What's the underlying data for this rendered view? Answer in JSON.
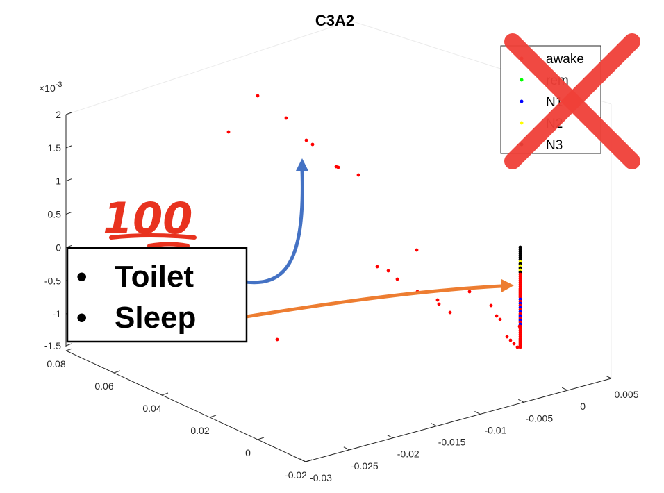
{
  "chart_data": {
    "type": "scatter",
    "title": "C3A2",
    "z_axis": {
      "exponent_label": "×10",
      "exponent_power": "-3",
      "tick_labels": [
        "2",
        "1.5",
        "1",
        "0.5",
        "0",
        "-0.5",
        "-1",
        "-1.5"
      ]
    },
    "y_axis": {
      "tick_labels": [
        "0.08",
        "0.06",
        "0.04",
        "0.02",
        "0",
        "-0.02"
      ]
    },
    "x_axis": {
      "tick_labels": [
        "-0.03",
        "-0.025",
        "-0.02",
        "-0.015",
        "-0.01",
        "-0.005",
        "0",
        "0.005"
      ]
    },
    "legend": {
      "position": "top-right",
      "crossed_out": true,
      "entries": [
        {
          "name": "awake",
          "color": "#ff0000"
        },
        {
          "name": "rem",
          "color": "#00ff00"
        },
        {
          "name": "N1",
          "color": "#0000ff"
        },
        {
          "name": "N2",
          "color": "#ffff00"
        },
        {
          "name": "N3",
          "color": "#000000"
        }
      ]
    },
    "series": [
      {
        "name": "awake",
        "color": "#ff0000",
        "points": [
          [
            371,
            138
          ],
          [
            412,
            170
          ],
          [
            329,
            190
          ],
          [
            441,
            202
          ],
          [
            450,
            208
          ],
          [
            484,
            240
          ],
          [
            487,
            241
          ],
          [
            516,
            252
          ],
          [
            600,
            360
          ],
          [
            543,
            384
          ],
          [
            559,
            390
          ],
          [
            572,
            402
          ],
          [
            601,
            420
          ],
          [
            630,
            432
          ],
          [
            632,
            438
          ],
          [
            648,
            450
          ],
          [
            676,
            420
          ],
          [
            707,
            440
          ],
          [
            715,
            455
          ],
          [
            720,
            460
          ],
          [
            399,
            489
          ],
          [
            735,
            490
          ],
          [
            740,
            495
          ],
          [
            745,
            500
          ],
          [
            748,
            470
          ],
          [
            730,
            485
          ]
        ]
      }
    ],
    "cluster_color": "#000000"
  },
  "annotations": {
    "callout_items": [
      "Toilet",
      "Sleep"
    ],
    "bullet": "•",
    "emoji_text": "100",
    "arrow_colors": {
      "toilet": "#4472c4",
      "sleep": "#ed7d31"
    },
    "cross_color": "#f04038"
  }
}
